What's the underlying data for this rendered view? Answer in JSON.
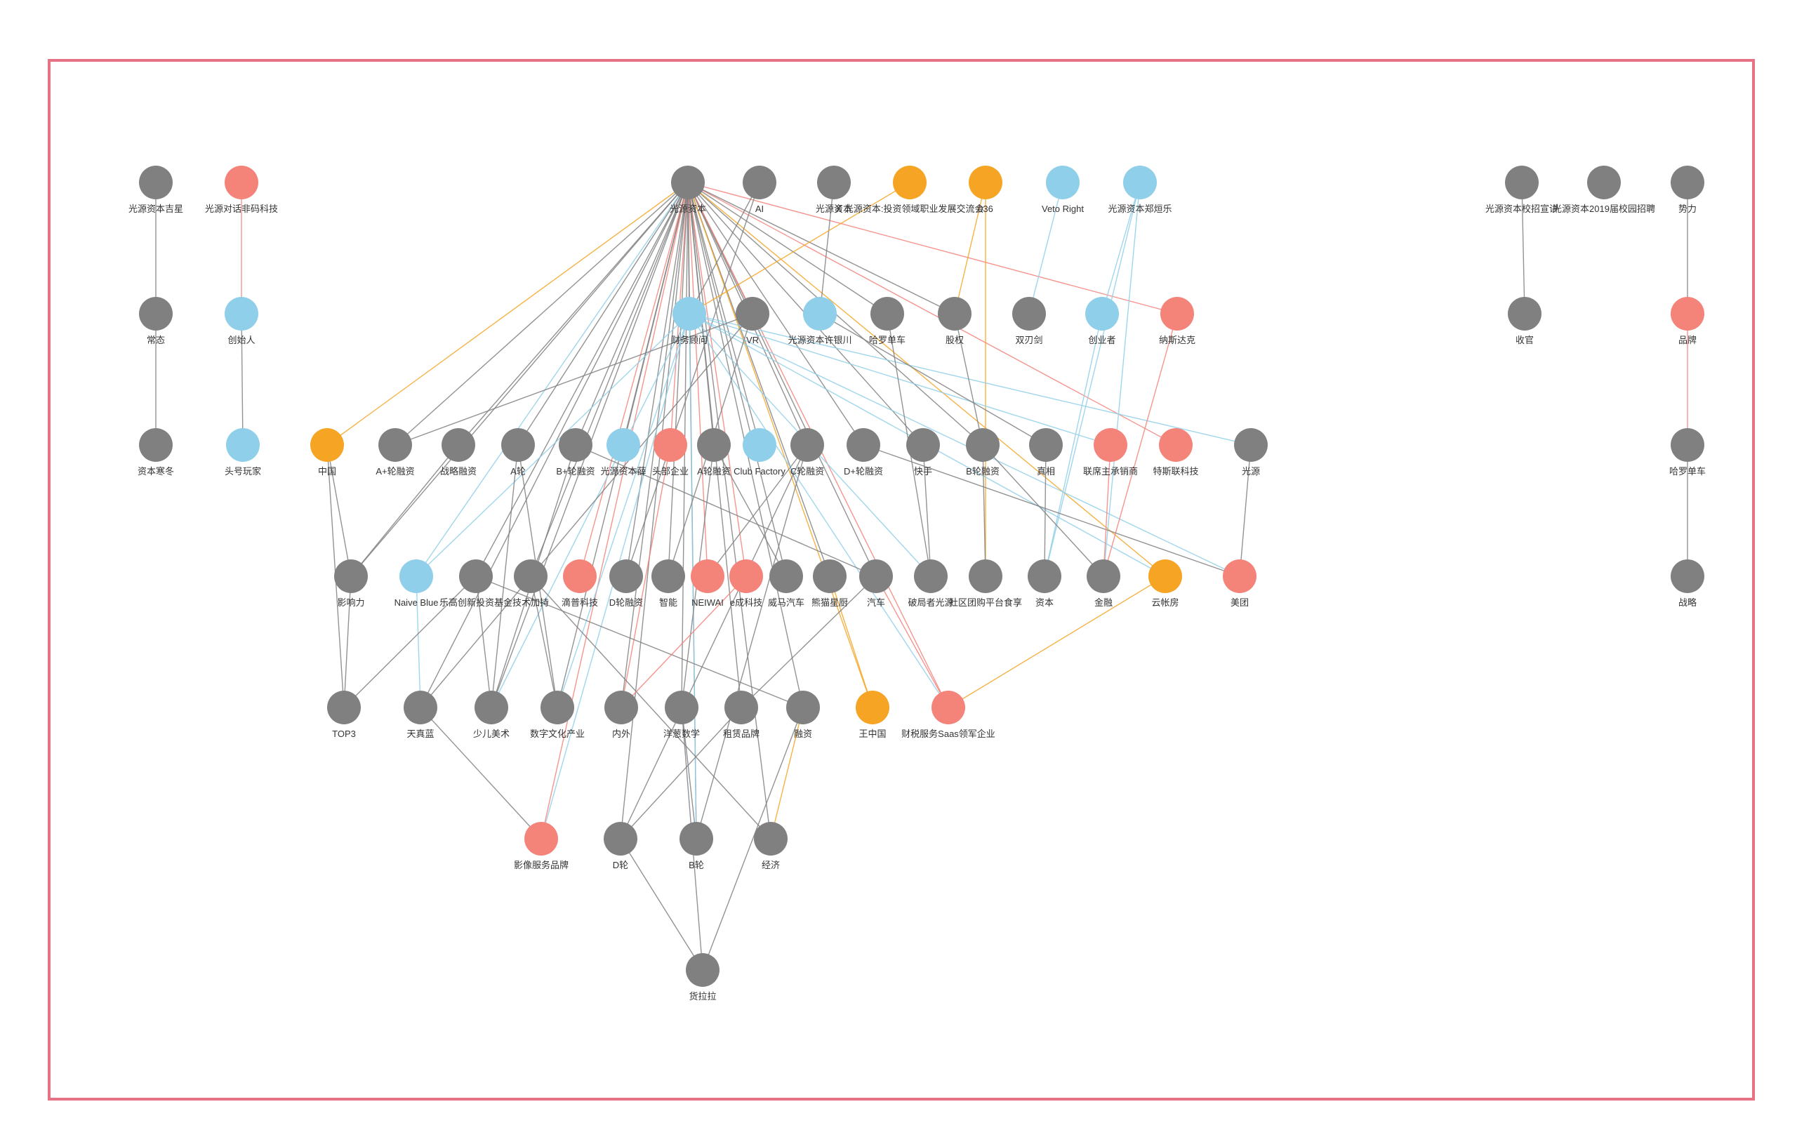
{
  "colors": {
    "gray": "#808080",
    "red": "#f4837a",
    "blue": "#8fcfe9",
    "orange": "#f5a424",
    "frame": "#e57385"
  },
  "nodes": [
    {
      "id": "n1",
      "label": "光源资本吉星",
      "color": "gray"
    },
    {
      "id": "n2",
      "label": "光源对话非码科技",
      "color": "red"
    },
    {
      "id": "n3",
      "label": "光源资本",
      "color": "gray"
    },
    {
      "id": "n4",
      "label": "AI",
      "color": "gray"
    },
    {
      "id": "n5",
      "label": "光源资本",
      "color": "gray"
    },
    {
      "id": "n6",
      "label": "X 光源资本:投资领域职业发展交流会",
      "color": "orange"
    },
    {
      "id": "n7",
      "label": "036",
      "color": "orange"
    },
    {
      "id": "n8",
      "label": "Veto Right",
      "color": "blue"
    },
    {
      "id": "n9",
      "label": "光源资本郑烜乐",
      "color": "blue"
    },
    {
      "id": "n10",
      "label": "光源资本校招宣讲",
      "color": "gray"
    },
    {
      "id": "n11",
      "label": "光源资本2019届校园招聘",
      "color": "gray"
    },
    {
      "id": "n12",
      "label": "势力",
      "color": "gray"
    },
    {
      "id": "n13",
      "label": "常态",
      "color": "gray"
    },
    {
      "id": "n14",
      "label": "创始人",
      "color": "blue"
    },
    {
      "id": "n15",
      "label": "财务顾问",
      "color": "blue"
    },
    {
      "id": "n16",
      "label": "VR",
      "color": "gray"
    },
    {
      "id": "n17",
      "label": "光源资本许银川",
      "color": "blue"
    },
    {
      "id": "n18",
      "label": "哈罗单车",
      "color": "gray"
    },
    {
      "id": "n19",
      "label": "股权",
      "color": "gray"
    },
    {
      "id": "n20",
      "label": "双刃剑",
      "color": "gray"
    },
    {
      "id": "n21",
      "label": "创业者",
      "color": "blue"
    },
    {
      "id": "n22",
      "label": "纳斯达克",
      "color": "red"
    },
    {
      "id": "n23",
      "label": "收官",
      "color": "gray"
    },
    {
      "id": "n24",
      "label": "品牌",
      "color": "red"
    },
    {
      "id": "n25",
      "label": "资本寒冬",
      "color": "gray"
    },
    {
      "id": "n26",
      "label": "头号玩家",
      "color": "blue"
    },
    {
      "id": "n27",
      "label": "中国",
      "color": "orange"
    },
    {
      "id": "n28",
      "label": "A+轮融资",
      "color": "gray"
    },
    {
      "id": "n29",
      "label": "战略融资",
      "color": "gray"
    },
    {
      "id": "n30",
      "label": "A轮",
      "color": "gray"
    },
    {
      "id": "n31",
      "label": "B+轮融资",
      "color": "gray"
    },
    {
      "id": "n32",
      "label": "光源资本薛",
      "color": "blue"
    },
    {
      "id": "n33",
      "label": "头部企业",
      "color": "red"
    },
    {
      "id": "n34",
      "label": "A轮融资",
      "color": "gray"
    },
    {
      "id": "n35",
      "label": "Club Factory",
      "color": "blue"
    },
    {
      "id": "n36",
      "label": "C轮融资",
      "color": "gray"
    },
    {
      "id": "n37",
      "label": "D+轮融资",
      "color": "gray"
    },
    {
      "id": "n38",
      "label": "快手",
      "color": "gray"
    },
    {
      "id": "n39",
      "label": "B轮融资",
      "color": "gray"
    },
    {
      "id": "n40",
      "label": "真相",
      "color": "gray"
    },
    {
      "id": "n41",
      "label": "联席主承销商",
      "color": "red"
    },
    {
      "id": "n42",
      "label": "特斯联科技",
      "color": "red"
    },
    {
      "id": "n43",
      "label": "光源",
      "color": "gray"
    },
    {
      "id": "n44",
      "label": "哈罗单车",
      "color": "gray"
    },
    {
      "id": "n45",
      "label": "影响力",
      "color": "gray"
    },
    {
      "id": "n46",
      "label": "Naive Blue",
      "color": "blue"
    },
    {
      "id": "n47",
      "label": "乐高创新投资基金",
      "color": "gray"
    },
    {
      "id": "n48",
      "label": "技术加持",
      "color": "gray"
    },
    {
      "id": "n49",
      "label": "滴普科技",
      "color": "red"
    },
    {
      "id": "n50",
      "label": "D轮融资",
      "color": "gray"
    },
    {
      "id": "n51",
      "label": "智能",
      "color": "gray"
    },
    {
      "id": "n52",
      "label": "NEIWAI",
      "color": "red"
    },
    {
      "id": "n53",
      "label": "e成科技",
      "color": "red"
    },
    {
      "id": "n54",
      "label": "威马汽车",
      "color": "gray"
    },
    {
      "id": "n55",
      "label": "熊猫星厨",
      "color": "gray"
    },
    {
      "id": "n56",
      "label": "汽车",
      "color": "gray"
    },
    {
      "id": "n57",
      "label": "破局者光源",
      "color": "gray"
    },
    {
      "id": "n58",
      "label": "社区团购平台食享",
      "color": "gray"
    },
    {
      "id": "n59",
      "label": "资本",
      "color": "gray"
    },
    {
      "id": "n60",
      "label": "金融",
      "color": "gray"
    },
    {
      "id": "n61",
      "label": "云帐房",
      "color": "orange"
    },
    {
      "id": "n62",
      "label": "美团",
      "color": "red"
    },
    {
      "id": "n63",
      "label": "战略",
      "color": "gray"
    },
    {
      "id": "n64",
      "label": "TOP3",
      "color": "gray"
    },
    {
      "id": "n65",
      "label": "天真蓝",
      "color": "gray"
    },
    {
      "id": "n66",
      "label": "少儿美术",
      "color": "gray"
    },
    {
      "id": "n67",
      "label": "数字文化产业",
      "color": "gray"
    },
    {
      "id": "n68",
      "label": "内外",
      "color": "gray"
    },
    {
      "id": "n69",
      "label": "洋葱数学",
      "color": "gray"
    },
    {
      "id": "n70",
      "label": "租赁品牌",
      "color": "gray"
    },
    {
      "id": "n71",
      "label": "融资",
      "color": "gray"
    },
    {
      "id": "n72",
      "label": "王中国",
      "color": "orange"
    },
    {
      "id": "n73",
      "label": "财税服务Saas领军企业",
      "color": "red"
    },
    {
      "id": "n74",
      "label": "影像服务品牌",
      "color": "red"
    },
    {
      "id": "n75",
      "label": "D轮",
      "color": "gray"
    },
    {
      "id": "n76",
      "label": "B轮",
      "color": "gray"
    },
    {
      "id": "n77",
      "label": "经济",
      "color": "gray"
    },
    {
      "id": "n78",
      "label": "货拉拉",
      "color": "gray"
    }
  ],
  "edges": [
    [
      "n1",
      "n13",
      "gray"
    ],
    [
      "n13",
      "n25",
      "gray"
    ],
    [
      "n2",
      "n14",
      "red"
    ],
    [
      "n14",
      "n26",
      "gray"
    ],
    [
      "n10",
      "n23",
      "gray"
    ],
    [
      "n12",
      "n24",
      "gray"
    ],
    [
      "n24",
      "n44",
      "red"
    ],
    [
      "n44",
      "n63",
      "gray"
    ],
    [
      "n3",
      "n27",
      "orange"
    ],
    [
      "n3",
      "n28",
      "gray"
    ],
    [
      "n3",
      "n29",
      "gray"
    ],
    [
      "n3",
      "n30",
      "gray"
    ],
    [
      "n3",
      "n31",
      "gray"
    ],
    [
      "n3",
      "n32",
      "gray"
    ],
    [
      "n3",
      "n33",
      "red"
    ],
    [
      "n3",
      "n34",
      "gray"
    ],
    [
      "n3",
      "n35",
      "gray"
    ],
    [
      "n3",
      "n36",
      "gray"
    ],
    [
      "n3",
      "n37",
      "gray"
    ],
    [
      "n3",
      "n38",
      "gray"
    ],
    [
      "n3",
      "n39",
      "gray"
    ],
    [
      "n3",
      "n42",
      "red"
    ],
    [
      "n3",
      "n22",
      "red"
    ],
    [
      "n3",
      "n61",
      "orange"
    ],
    [
      "n3",
      "n15",
      "gray"
    ],
    [
      "n3",
      "n16",
      "gray"
    ],
    [
      "n3",
      "n18",
      "gray"
    ],
    [
      "n3",
      "n19",
      "gray"
    ],
    [
      "n3",
      "n45",
      "gray"
    ],
    [
      "n3",
      "n46",
      "blue"
    ],
    [
      "n3",
      "n47",
      "gray"
    ],
    [
      "n3",
      "n48",
      "gray"
    ],
    [
      "n3",
      "n49",
      "red"
    ],
    [
      "n3",
      "n50",
      "gray"
    ],
    [
      "n3",
      "n51",
      "gray"
    ],
    [
      "n3",
      "n52",
      "red"
    ],
    [
      "n3",
      "n53",
      "red"
    ],
    [
      "n3",
      "n54",
      "gray"
    ],
    [
      "n3",
      "n55",
      "gray"
    ],
    [
      "n3",
      "n56",
      "gray"
    ],
    [
      "n3",
      "n65",
      "gray"
    ],
    [
      "n3",
      "n66",
      "gray"
    ],
    [
      "n3",
      "n67",
      "gray"
    ],
    [
      "n3",
      "n68",
      "gray"
    ],
    [
      "n3",
      "n69",
      "gray"
    ],
    [
      "n3",
      "n70",
      "gray"
    ],
    [
      "n3",
      "n71",
      "gray"
    ],
    [
      "n3",
      "n72",
      "orange"
    ],
    [
      "n3",
      "n73",
      "red"
    ],
    [
      "n3",
      "n74",
      "red"
    ],
    [
      "n3",
      "n75",
      "gray"
    ],
    [
      "n3",
      "n76",
      "gray"
    ],
    [
      "n3",
      "n77",
      "gray"
    ],
    [
      "n4",
      "n15",
      "gray"
    ],
    [
      "n4",
      "n50",
      "gray"
    ],
    [
      "n5",
      "n17",
      "gray"
    ],
    [
      "n6",
      "n15",
      "orange"
    ],
    [
      "n7",
      "n58",
      "orange"
    ],
    [
      "n7",
      "n19",
      "orange"
    ],
    [
      "n8",
      "n20",
      "blue"
    ],
    [
      "n9",
      "n21",
      "blue"
    ],
    [
      "n9",
      "n59",
      "blue"
    ],
    [
      "n9",
      "n60",
      "blue"
    ],
    [
      "n15",
      "n43",
      "blue"
    ],
    [
      "n15",
      "n41",
      "blue"
    ],
    [
      "n15",
      "n46",
      "blue"
    ],
    [
      "n15",
      "n67",
      "blue"
    ],
    [
      "n15",
      "n66",
      "blue"
    ],
    [
      "n15",
      "n74",
      "blue"
    ],
    [
      "n15",
      "n76",
      "blue"
    ],
    [
      "n15",
      "n61",
      "blue"
    ],
    [
      "n15",
      "n57",
      "blue"
    ],
    [
      "n15",
      "n73",
      "blue"
    ],
    [
      "n15",
      "n62",
      "blue"
    ],
    [
      "n16",
      "n28",
      "gray"
    ],
    [
      "n16",
      "n65",
      "gray"
    ],
    [
      "n16",
      "n51",
      "gray"
    ],
    [
      "n17",
      "n40",
      "gray"
    ],
    [
      "n18",
      "n57",
      "gray"
    ],
    [
      "n19",
      "n39",
      "gray"
    ],
    [
      "n21",
      "n59",
      "blue"
    ],
    [
      "n22",
      "n60",
      "red"
    ],
    [
      "n27",
      "n45",
      "gray"
    ],
    [
      "n27",
      "n64",
      "gray"
    ],
    [
      "n29",
      "n45",
      "gray"
    ],
    [
      "n30",
      "n67",
      "gray"
    ],
    [
      "n30",
      "n66",
      "gray"
    ],
    [
      "n31",
      "n56",
      "gray"
    ],
    [
      "n31",
      "n66",
      "gray"
    ],
    [
      "n33",
      "n68",
      "red"
    ],
    [
      "n34",
      "n69",
      "gray"
    ],
    [
      "n34",
      "n54",
      "gray"
    ],
    [
      "n36",
      "n76",
      "gray"
    ],
    [
      "n36",
      "n75",
      "gray"
    ],
    [
      "n36",
      "n52",
      "gray"
    ],
    [
      "n37",
      "n62",
      "gray"
    ],
    [
      "n38",
      "n57",
      "gray"
    ],
    [
      "n39",
      "n58",
      "gray"
    ],
    [
      "n39",
      "n60",
      "gray"
    ],
    [
      "n40",
      "n59",
      "gray"
    ],
    [
      "n41",
      "n60",
      "red"
    ],
    [
      "n43",
      "n62",
      "gray"
    ],
    [
      "n45",
      "n64",
      "gray"
    ],
    [
      "n46",
      "n65",
      "blue"
    ],
    [
      "n47",
      "n66",
      "gray"
    ],
    [
      "n47",
      "n71",
      "gray"
    ],
    [
      "n48",
      "n67",
      "gray"
    ],
    [
      "n48",
      "n77",
      "gray"
    ],
    [
      "n53",
      "n68",
      "red"
    ],
    [
      "n55",
      "n72",
      "orange"
    ],
    [
      "n56",
      "n73",
      "red"
    ],
    [
      "n56",
      "n70",
      "gray"
    ],
    [
      "n61",
      "n73",
      "orange"
    ],
    [
      "n65",
      "n74",
      "gray"
    ],
    [
      "n69",
      "n76",
      "gray"
    ],
    [
      "n69",
      "n78",
      "gray"
    ],
    [
      "n70",
      "n75",
      "gray"
    ],
    [
      "n71",
      "n78",
      "gray"
    ],
    [
      "n71",
      "n77",
      "orange"
    ],
    [
      "n75",
      "n78",
      "gray"
    ],
    [
      "n47",
      "n64",
      "gray"
    ]
  ]
}
